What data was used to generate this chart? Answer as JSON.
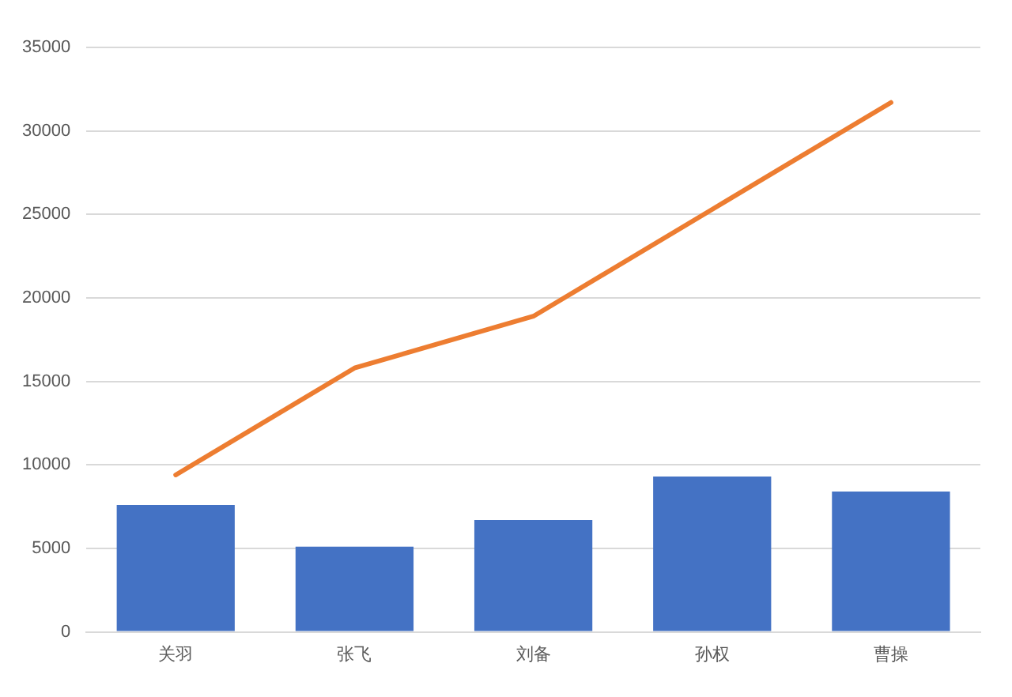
{
  "chart_data": {
    "type": "bar",
    "categories": [
      "关羽",
      "张飞",
      "刘备",
      "孙权",
      "曹操"
    ],
    "series": [
      {
        "color": "#4472c4",
        "values": [
          7600,
          5100,
          6700,
          9300,
          8400
        ]
      },
      {
        "type": "line",
        "color": "#ed7d31",
        "values": [
          9400,
          15800,
          18900,
          25300,
          31700
        ]
      }
    ],
    "ylim": [
      0,
      35000
    ],
    "yticks": [
      0,
      5000,
      10000,
      15000,
      20000,
      25000,
      30000,
      35000
    ],
    "grid": "y",
    "legend": false
  }
}
